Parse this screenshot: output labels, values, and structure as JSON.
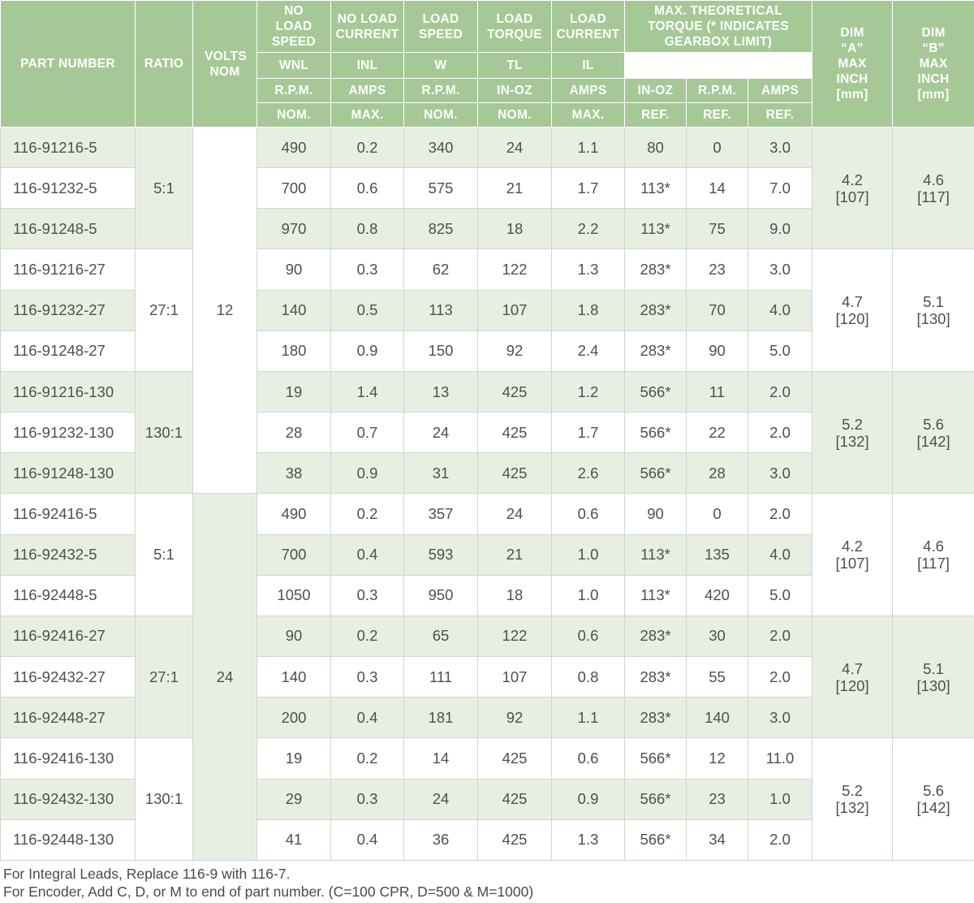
{
  "header": {
    "part_number": "PART NUMBER",
    "ratio": "RATIO",
    "volts": "VOLTS NOM",
    "no_load_speed": "NO LOAD SPEED",
    "no_load_current": "NO LOAD CURRENT",
    "load_speed": "LOAD SPEED",
    "load_torque": "LOAD TORQUE",
    "load_current": "LOAD CURRENT",
    "max_torque": "MAX. THEORETICAL TORQUE (* INDICATES GEARBOX LIMIT)",
    "dim_a": "DIM “A” MAX INCH [mm]",
    "dim_b": "DIM “B” MAX INCH [mm]",
    "symbols": [
      "WNL",
      "INL",
      "W",
      "TL",
      "IL"
    ],
    "units": [
      "R.P.M.",
      "AMPS",
      "R.P.M.",
      "IN-OZ",
      "AMPS",
      "IN-OZ",
      "R.P.M.",
      "AMPS"
    ],
    "qualifiers": [
      "NOM.",
      "MAX.",
      "NOM.",
      "NOM.",
      "MAX.",
      "REF.",
      "REF.",
      "REF."
    ]
  },
  "rows": [
    {
      "part": "116-91216-5",
      "wnl": "490",
      "inl": "0.2",
      "w": "340",
      "tl": "24",
      "il": "1.1",
      "mt": "80",
      "mr": "0",
      "ma": "3.0"
    },
    {
      "part": "116-91232-5",
      "wnl": "700",
      "inl": "0.6",
      "w": "575",
      "tl": "21",
      "il": "1.7",
      "mt": "113*",
      "mr": "14",
      "ma": "7.0"
    },
    {
      "part": "116-91248-5",
      "wnl": "970",
      "inl": "0.8",
      "w": "825",
      "tl": "18",
      "il": "2.2",
      "mt": "113*",
      "mr": "75",
      "ma": "9.0"
    },
    {
      "part": "116-91216-27",
      "wnl": "90",
      "inl": "0.3",
      "w": "62",
      "tl": "122",
      "il": "1.3",
      "mt": "283*",
      "mr": "23",
      "ma": "3.0"
    },
    {
      "part": "116-91232-27",
      "wnl": "140",
      "inl": "0.5",
      "w": "113",
      "tl": "107",
      "il": "1.8",
      "mt": "283*",
      "mr": "70",
      "ma": "4.0"
    },
    {
      "part": "116-91248-27",
      "wnl": "180",
      "inl": "0.9",
      "w": "150",
      "tl": "92",
      "il": "2.4",
      "mt": "283*",
      "mr": "90",
      "ma": "5.0"
    },
    {
      "part": "116-91216-130",
      "wnl": "19",
      "inl": "1.4",
      "w": "13",
      "tl": "425",
      "il": "1.2",
      "mt": "566*",
      "mr": "11",
      "ma": "2.0"
    },
    {
      "part": "116-91232-130",
      "wnl": "28",
      "inl": "0.7",
      "w": "24",
      "tl": "425",
      "il": "1.7",
      "mt": "566*",
      "mr": "22",
      "ma": "2.0"
    },
    {
      "part": "116-91248-130",
      "wnl": "38",
      "inl": "0.9",
      "w": "31",
      "tl": "425",
      "il": "2.6",
      "mt": "566*",
      "mr": "28",
      "ma": "3.0"
    },
    {
      "part": "116-92416-5",
      "wnl": "490",
      "inl": "0.2",
      "w": "357",
      "tl": "24",
      "il": "0.6",
      "mt": "90",
      "mr": "0",
      "ma": "2.0"
    },
    {
      "part": "116-92432-5",
      "wnl": "700",
      "inl": "0.4",
      "w": "593",
      "tl": "21",
      "il": "1.0",
      "mt": "113*",
      "mr": "135",
      "ma": "4.0"
    },
    {
      "part": "116-92448-5",
      "wnl": "1050",
      "inl": "0.3",
      "w": "950",
      "tl": "18",
      "il": "1.0",
      "mt": "113*",
      "mr": "420",
      "ma": "5.0"
    },
    {
      "part": "116-92416-27",
      "wnl": "90",
      "inl": "0.2",
      "w": "65",
      "tl": "122",
      "il": "0.6",
      "mt": "283*",
      "mr": "30",
      "ma": "2.0"
    },
    {
      "part": "116-92432-27",
      "wnl": "140",
      "inl": "0.3",
      "w": "111",
      "tl": "107",
      "il": "0.8",
      "mt": "283*",
      "mr": "55",
      "ma": "2.0"
    },
    {
      "part": "116-92448-27",
      "wnl": "200",
      "inl": "0.4",
      "w": "181",
      "tl": "92",
      "il": "1.1",
      "mt": "283*",
      "mr": "140",
      "ma": "3.0"
    },
    {
      "part": "116-92416-130",
      "wnl": "19",
      "inl": "0.2",
      "w": "14",
      "tl": "425",
      "il": "0.6",
      "mt": "566*",
      "mr": "12",
      "ma": "11.0"
    },
    {
      "part": "116-92432-130",
      "wnl": "29",
      "inl": "0.3",
      "w": "24",
      "tl": "425",
      "il": "0.9",
      "mt": "566*",
      "mr": "23",
      "ma": "1.0"
    },
    {
      "part": "116-92448-130",
      "wnl": "41",
      "inl": "0.4",
      "w": "36",
      "tl": "425",
      "il": "1.3",
      "mt": "566*",
      "mr": "34",
      "ma": "2.0"
    }
  ],
  "ratio_groups": [
    "5:1",
    "27:1",
    "130:1",
    "5:1",
    "27:1",
    "130:1"
  ],
  "volt_groups": [
    "12",
    "24"
  ],
  "dim_groups": [
    {
      "a_in": "4.2",
      "a_mm": "[107]",
      "b_in": "4.6",
      "b_mm": "[117]"
    },
    {
      "a_in": "4.7",
      "a_mm": "[120]",
      "b_in": "5.1",
      "b_mm": "[130]"
    },
    {
      "a_in": "5.2",
      "a_mm": "[132]",
      "b_in": "5.6",
      "b_mm": "[142]"
    },
    {
      "a_in": "4.2",
      "a_mm": "[107]",
      "b_in": "4.6",
      "b_mm": "[117]"
    },
    {
      "a_in": "4.7",
      "a_mm": "[120]",
      "b_in": "5.1",
      "b_mm": "[130]"
    },
    {
      "a_in": "5.2",
      "a_mm": "[132]",
      "b_in": "5.6",
      "b_mm": "[142]"
    }
  ],
  "footnotes": [
    "For Integral Leads, Replace 116-9 with 116-7.",
    "For Encoder, Add C, D, or M to end of part number. (C=100 CPR, D=500 & M=1000)"
  ],
  "colors": {
    "header_green": "#a6c896",
    "row_shade": "#e8efe2"
  }
}
